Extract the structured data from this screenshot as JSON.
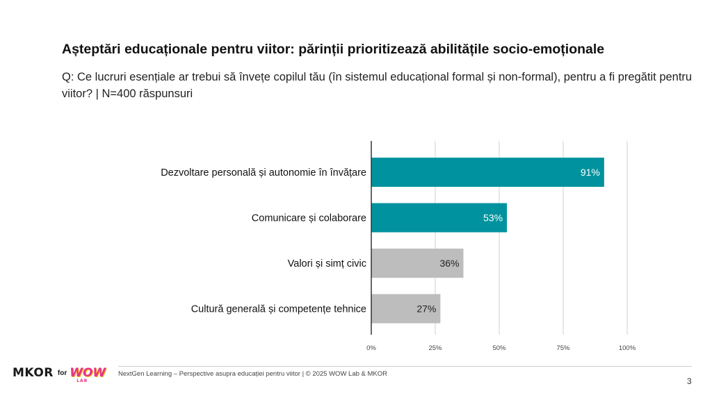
{
  "header": {
    "title": "Așteptări educaționale pentru viitor: părinții prioritizează abilitățile socio-emoționale",
    "subtitle": "Q: Ce lucruri esențiale ar trebui să învețe copilul tău (în sistemul educațional formal și non-formal), pentru a fi pregătit pentru viitor? | N=400 răspunsuri"
  },
  "chart_data": {
    "type": "bar",
    "orientation": "horizontal",
    "categories": [
      "Dezvoltare personală și autonomie în învățare",
      "Comunicare și colaborare",
      "Valori și simț civic",
      "Cultură generală și competențe tehnice"
    ],
    "values": [
      91,
      53,
      36,
      27
    ],
    "data_labels": [
      "91%",
      "53%",
      "36%",
      "27%"
    ],
    "bar_colors": [
      "#00939f",
      "#00939f",
      "#bdbdbd",
      "#bdbdbd"
    ],
    "label_colors": [
      "#ffffff",
      "#ffffff",
      "#222222",
      "#222222"
    ],
    "xlim": [
      0,
      100
    ],
    "xticks": [
      0,
      25,
      50,
      75,
      100
    ],
    "xtick_labels": [
      "0%",
      "25%",
      "50%",
      "75%",
      "100%"
    ],
    "grid": true
  },
  "footer": {
    "text": "NextGen Learning – Perspective asupra educației pentru viitor | © 2025 WOW Lab & MKOR",
    "page": "3",
    "logo": {
      "mkor": "MKOR",
      "for": "for",
      "wow": "WOW",
      "lab": "LAB"
    }
  }
}
